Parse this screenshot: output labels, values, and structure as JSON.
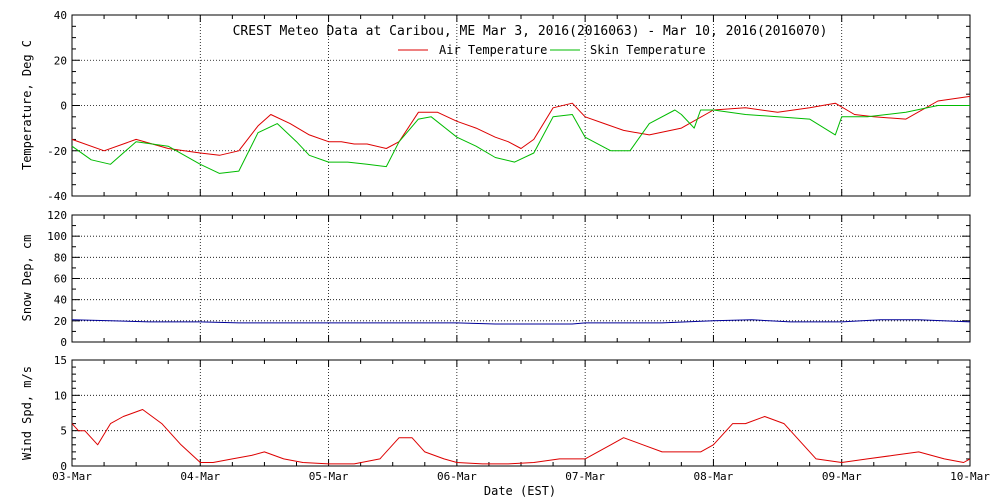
{
  "chart_data": [
    {
      "type": "line",
      "title": "CREST Meteo Data at Caribou, ME   Mar  3, 2016(2016063) - Mar 10, 2016(2016070)",
      "ylabel": "Temperature, Deg C",
      "ylim": [
        -40,
        40
      ],
      "yticks": [
        "40",
        "20",
        "0",
        "-20",
        "-40"
      ],
      "legend_position": "top-center",
      "grid": true,
      "series": [
        {
          "name": "Air Temperature",
          "color": "#dd0000",
          "x": [
            3.0,
            3.25,
            3.5,
            3.75,
            4.0,
            4.15,
            4.3,
            4.45,
            4.55,
            4.7,
            4.85,
            5.0,
            5.1,
            5.2,
            5.3,
            5.45,
            5.55,
            5.7,
            5.85,
            6.0,
            6.15,
            6.3,
            6.4,
            6.5,
            6.6,
            6.75,
            6.9,
            7.0,
            7.15,
            7.3,
            7.5,
            7.75,
            8.0,
            8.25,
            8.5,
            8.75,
            8.95,
            9.1,
            9.25,
            9.5,
            9.75,
            10.0
          ],
          "y": [
            -15,
            -20,
            -15,
            -19,
            -21,
            -22,
            -20,
            -9,
            -4,
            -8,
            -13,
            -16,
            -16,
            -17,
            -17,
            -19,
            -16,
            -3,
            -3,
            -7,
            -10,
            -14,
            -16,
            -19,
            -15,
            -1,
            1,
            -5,
            -8,
            -11,
            -13,
            -10,
            -2,
            -1,
            -3,
            -1,
            1,
            -4,
            -5,
            -6,
            2,
            4
          ]
        },
        {
          "name": "Skin Temperature",
          "color": "#00bb00",
          "x": [
            3.0,
            3.15,
            3.3,
            3.5,
            3.75,
            4.0,
            4.15,
            4.3,
            4.45,
            4.6,
            4.75,
            4.85,
            5.0,
            5.15,
            5.3,
            5.45,
            5.55,
            5.7,
            5.8,
            6.0,
            6.15,
            6.3,
            6.45,
            6.6,
            6.75,
            6.9,
            7.0,
            7.2,
            7.35,
            7.5,
            7.7,
            7.75,
            7.85,
            7.9,
            8.0,
            8.25,
            8.5,
            8.75,
            8.95,
            9.0,
            9.2,
            9.5,
            9.75,
            10.0
          ],
          "y": [
            -18,
            -24,
            -26,
            -16,
            -18,
            -26,
            -30,
            -29,
            -12,
            -8,
            -16,
            -22,
            -25,
            -25,
            -26,
            -27,
            -16,
            -6,
            -5,
            -14,
            -18,
            -23,
            -25,
            -21,
            -5,
            -4,
            -14,
            -20,
            -20,
            -8,
            -2,
            -4,
            -10,
            -2,
            -2,
            -4,
            -5,
            -6,
            -13,
            -5,
            -5,
            -3,
            0,
            0
          ]
        }
      ]
    },
    {
      "type": "line",
      "ylabel": "Snow Dep, cm",
      "ylim": [
        0,
        120
      ],
      "yticks": [
        "120",
        "100",
        "80",
        "60",
        "40",
        "20",
        "0"
      ],
      "grid": true,
      "series": [
        {
          "color": "#000099",
          "x": [
            3.0,
            3.3,
            3.6,
            4.0,
            4.3,
            4.6,
            5.0,
            5.3,
            5.6,
            6.0,
            6.3,
            6.6,
            6.9,
            7.0,
            7.3,
            7.6,
            8.0,
            8.3,
            8.6,
            8.8,
            9.0,
            9.3,
            9.6,
            10.0
          ],
          "y": [
            21,
            20,
            19,
            19,
            18,
            18,
            18,
            18,
            18,
            18,
            17,
            17,
            17,
            18,
            18,
            18,
            20,
            21,
            19,
            19,
            19,
            21,
            21,
            19
          ]
        }
      ]
    },
    {
      "type": "line",
      "ylabel": "Wind Spd, m/s",
      "ylim": [
        0,
        15
      ],
      "yticks": [
        "15",
        "10",
        "5",
        "0"
      ],
      "xlabel": "Date (EST)",
      "x_ticks": [
        "03-Mar",
        "04-Mar",
        "05-Mar",
        "06-Mar",
        "07-Mar",
        "08-Mar",
        "09-Mar",
        "10-Mar"
      ],
      "grid": true,
      "series": [
        {
          "color": "#dd0000",
          "x": [
            3.0,
            3.05,
            3.1,
            3.2,
            3.3,
            3.4,
            3.55,
            3.7,
            3.85,
            4.0,
            4.1,
            4.25,
            4.4,
            4.5,
            4.65,
            4.8,
            5.0,
            5.2,
            5.4,
            5.55,
            5.65,
            5.75,
            5.9,
            6.0,
            6.2,
            6.4,
            6.6,
            6.8,
            7.0,
            7.2,
            7.3,
            7.45,
            7.6,
            7.75,
            7.9,
            8.0,
            8.15,
            8.25,
            8.4,
            8.55,
            8.65,
            8.8,
            9.0,
            9.2,
            9.4,
            9.6,
            9.8,
            9.95,
            10.0
          ],
          "y": [
            6,
            5,
            5,
            3,
            6,
            7,
            8,
            6,
            3,
            0.5,
            0.5,
            1,
            1.5,
            2,
            1,
            0.5,
            0.3,
            0.3,
            1,
            4,
            4,
            2,
            1,
            0.5,
            0.3,
            0.3,
            0.5,
            1,
            1,
            3,
            4,
            3,
            2,
            2,
            2,
            3,
            6,
            6,
            7,
            6,
            4,
            1,
            0.5,
            1,
            1.5,
            2,
            1,
            0.5,
            1
          ]
        }
      ]
    }
  ]
}
